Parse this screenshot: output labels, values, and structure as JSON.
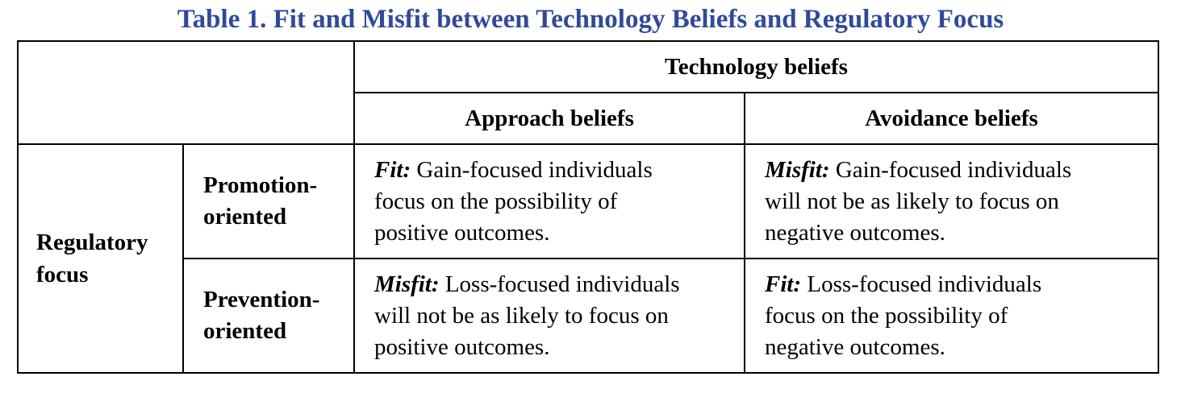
{
  "caption": "Table 1. Fit and Misfit between Technology Beliefs and Regulatory Focus",
  "table": {
    "group_header": "Technology beliefs",
    "col_headers": [
      "Approach beliefs",
      "Avoidance beliefs"
    ],
    "row_group": {
      "label_line1": "Regulatory",
      "label_line2": "focus"
    },
    "rows": [
      {
        "label_line1": "Promotion-",
        "label_line2": "oriented",
        "cells": [
          {
            "lead": "Fit:",
            "line1": " Gain-focused individuals",
            "line2": "focus on the possibility of",
            "line3": "positive outcomes."
          },
          {
            "lead": "Misfit:",
            "line1": " Gain-focused individuals",
            "line2": "will not be as likely to focus on",
            "line3": "negative outcomes."
          }
        ]
      },
      {
        "label_line1": "Prevention-",
        "label_line2": "oriented",
        "cells": [
          {
            "lead": "Misfit:",
            "line1": " Loss-focused individuals",
            "line2": "will not be as likely to focus on",
            "line3": "positive outcomes."
          },
          {
            "lead": "Fit:",
            "line1": " Loss-focused individuals",
            "line2": "focus on the possibility of",
            "line3": "negative outcomes."
          }
        ]
      }
    ]
  }
}
